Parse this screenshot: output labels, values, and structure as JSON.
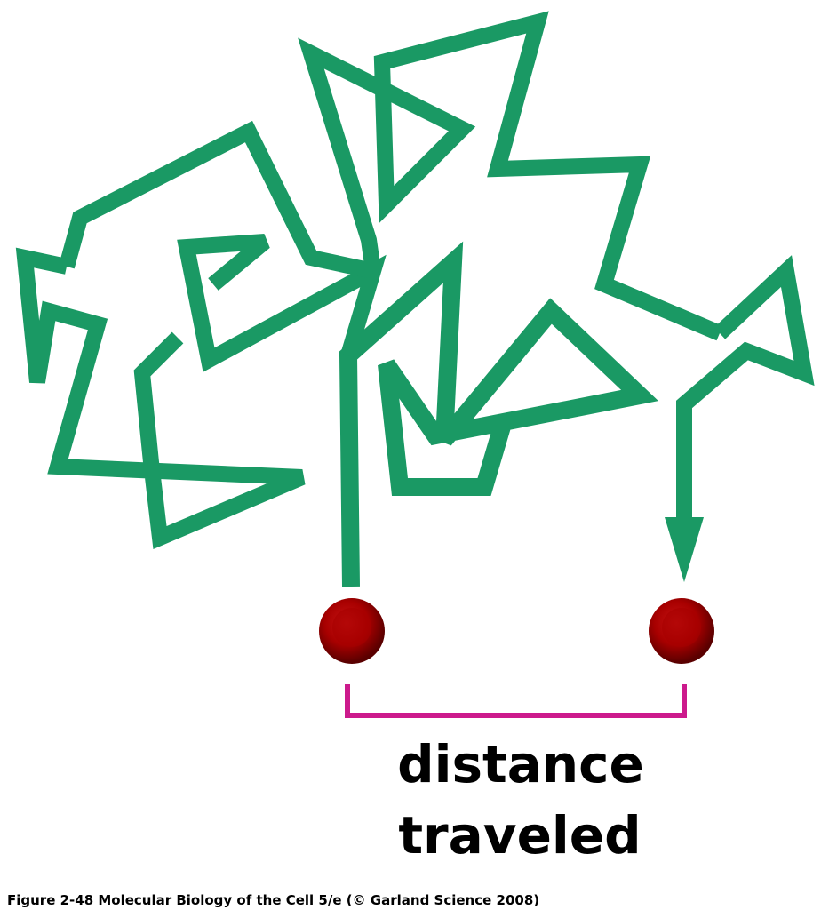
{
  "diagram": {
    "label_line1": "distance",
    "label_line2": "traveled",
    "caption": "Figure 2-48  Molecular Biology of the Cell 5/e (© Garland Science 2008)"
  },
  "colors": {
    "path": "#1a9964",
    "particle": "#b30000",
    "particle_highlight": "#d21a1a",
    "particle_shadow": "#6e0000",
    "bracket": "#cc1a8c",
    "text": "#000000",
    "background": "#ffffff"
  }
}
